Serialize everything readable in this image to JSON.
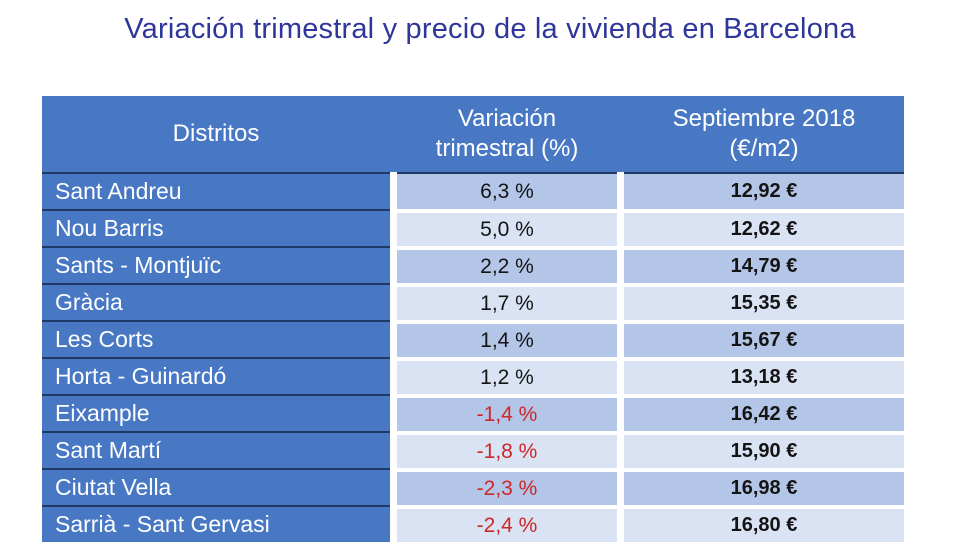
{
  "title": "Variación trimestral y precio de la vivienda en Barcelona",
  "theme": {
    "title_color": "#2F3699",
    "header_blue": "#4878C4",
    "row_band_dark": "#B4C6E7",
    "row_band_light": "#DAE3F3",
    "border_navy": "#1F3864",
    "negative_red": "#CE2727",
    "value_ink": "#141414"
  },
  "table": {
    "headers": [
      "Distritos",
      "Variación\ntrimestral (%)",
      "Septiembre 2018\n(€/m2)"
    ],
    "rows": [
      {
        "district": "Sant Andreu",
        "variation": "6,3 %",
        "price": "12,92 €"
      },
      {
        "district": "Nou Barris",
        "variation": "5,0 %",
        "price": "12,62 €"
      },
      {
        "district": "Sants - Montjuïc",
        "variation": "2,2 %",
        "price": "14,79 €"
      },
      {
        "district": "Gràcia",
        "variation": "1,7 %",
        "price": "15,35 €"
      },
      {
        "district": "Les Corts",
        "variation": "1,4 %",
        "price": "15,67 €"
      },
      {
        "district": "Horta - Guinardó",
        "variation": "1,2 %",
        "price": "13,18 €"
      },
      {
        "district": "Eixample",
        "variation": "-1,4 %",
        "price": "16,42 €"
      },
      {
        "district": "Sant Martí",
        "variation": "-1,8 %",
        "price": "15,90 €"
      },
      {
        "district": "Ciutat Vella",
        "variation": "-2,3 %",
        "price": "16,98 €"
      },
      {
        "district": "Sarrià - Sant Gervasi",
        "variation": "-2,4 %",
        "price": "16,80 €"
      }
    ]
  },
  "chart_data": {
    "type": "table",
    "title": "Variación trimestral y precio de la vivienda en Barcelona",
    "columns": [
      "Distritos",
      "Variación trimestral (%)",
      "Septiembre 2018 (€/m2)"
    ],
    "rows": [
      [
        "Sant Andreu",
        6.3,
        12.92
      ],
      [
        "Nou Barris",
        5.0,
        12.62
      ],
      [
        "Sants - Montjuïc",
        2.2,
        14.79
      ],
      [
        "Gràcia",
        1.7,
        15.35
      ],
      [
        "Les Corts",
        1.4,
        15.67
      ],
      [
        "Horta - Guinardó",
        1.2,
        13.18
      ],
      [
        "Eixample",
        -1.4,
        16.42
      ],
      [
        "Sant Martí",
        -1.8,
        15.9
      ],
      [
        "Ciutat Vella",
        -2.3,
        16.98
      ],
      [
        "Sarrià - Sant Gervasi",
        -2.4,
        16.8
      ]
    ],
    "layout_hints": {
      "banded_rows": true,
      "negative_values_in_red": true,
      "first_column_style": "blue header-like cells, white text",
      "decimal_separator": ","
    }
  }
}
